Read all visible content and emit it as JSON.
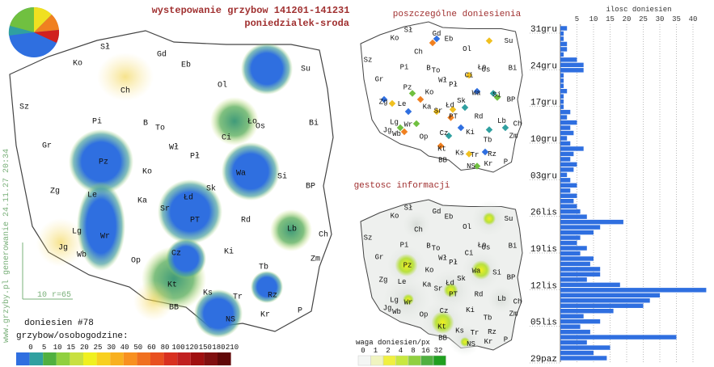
{
  "title": "wystepowanie grzybow 141201-141231",
  "subtitle": "poniedzialek-sroda",
  "cities": [
    "Sł",
    "Gd",
    "Eb",
    "Ol",
    "Su",
    "Ko",
    "Ch",
    "Sz",
    "Pi",
    "B",
    "To",
    "Ło",
    "Bi",
    "Ci",
    "Os",
    "Gr",
    "Pz",
    "Wł",
    "Pł",
    "Ko",
    "Wa",
    "Si",
    "Zg",
    "Le",
    "Ka",
    "Łd",
    "Sk",
    "BP",
    "Sr",
    "PT",
    "Rd",
    "Lg",
    "Wr",
    "Lb",
    "Ch",
    "Op",
    "Ki",
    "Jg",
    "Wb",
    "Tb",
    "Zm",
    "Cz",
    "Kt",
    "Ks",
    "Rz",
    "Tr",
    "BB",
    "NS",
    "Kr",
    "P"
  ],
  "scale_note": "10 r=65",
  "report_count": "doniesien #78",
  "footer_url": "www.grzyby.pl generowanie 24.11.27 20:34",
  "legend": {
    "title": "grzybow/osobogodzine:",
    "labels": [
      "0",
      "5",
      "10",
      "15",
      "20",
      "25",
      "30",
      "40",
      "50",
      "60",
      "80",
      "100",
      "120",
      "150",
      "180",
      "210"
    ]
  },
  "points_map": {
    "title": "poszczególne doniesienia"
  },
  "density_map": {
    "title": "gestosc informacji",
    "legend": {
      "title": "waga doniesien/px",
      "labels": [
        "0",
        "1",
        "2",
        "4",
        "8",
        "16",
        "32"
      ]
    }
  },
  "chart_data": {
    "type": "bar",
    "orientation": "horizontal",
    "title": "ilosc doniesien",
    "color": "#2f6fe0",
    "categories": [
      "29paz",
      null,
      null,
      null,
      null,
      null,
      null,
      "05lis",
      null,
      null,
      null,
      null,
      null,
      null,
      "12lis",
      null,
      null,
      null,
      null,
      null,
      null,
      "19lis",
      null,
      null,
      null,
      null,
      null,
      null,
      "26lis",
      null,
      null,
      null,
      null,
      null,
      null,
      "03gru",
      null,
      null,
      null,
      null,
      null,
      null,
      "10gru",
      null,
      null,
      null,
      null,
      null,
      null,
      "17gru",
      null,
      null,
      null,
      null,
      null,
      null,
      "24gru",
      null,
      null,
      null,
      null,
      null,
      null,
      "31gru"
    ],
    "values": [
      14,
      10,
      15,
      8,
      35,
      9,
      6,
      12,
      7,
      16,
      25,
      27,
      30,
      44,
      18,
      8,
      12,
      12,
      9,
      10,
      6,
      8,
      5,
      6,
      10,
      12,
      19,
      8,
      6,
      5,
      4,
      5,
      3,
      5,
      3,
      2,
      4,
      5,
      3,
      4,
      7,
      3,
      2,
      4,
      3,
      5,
      2,
      3,
      1,
      1,
      1,
      2,
      1,
      1,
      1,
      7,
      7,
      5,
      1,
      2,
      2,
      1,
      1,
      2
    ],
    "xlim": [
      0,
      45
    ],
    "xticks": [
      5,
      10,
      15,
      20,
      25,
      30,
      35,
      40
    ],
    "grid": true
  }
}
